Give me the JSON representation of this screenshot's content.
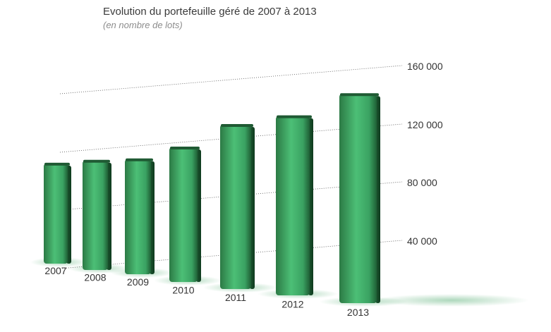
{
  "chart_data": {
    "type": "bar",
    "title": "Evolution du portefeuille géré de 2007 à 2013",
    "subtitle": "(en nombre de lots)",
    "categories": [
      "2007",
      "2008",
      "2009",
      "2010",
      "2011",
      "2012",
      "2013"
    ],
    "values": [
      84000,
      87000,
      87000,
      97000,
      113000,
      118000,
      132000
    ],
    "yticks": [
      "40 000",
      "80 000",
      "120 000",
      "160 000"
    ],
    "ylim": [
      0,
      160000
    ],
    "grid": true,
    "bar_color": "#3fa866"
  }
}
